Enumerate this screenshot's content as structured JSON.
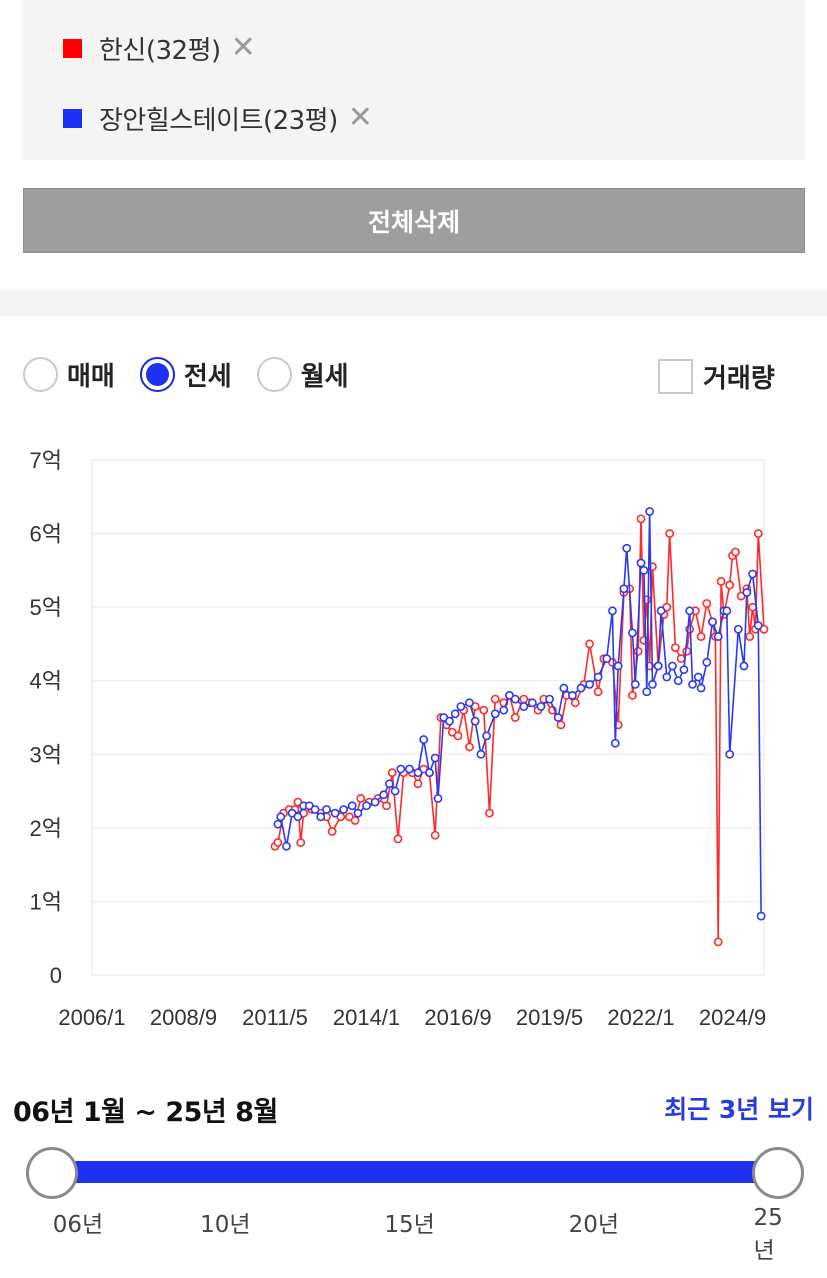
{
  "selected": [
    {
      "name": "한신(32평)",
      "color": "#ff0000",
      "remove_icon": "close-icon"
    },
    {
      "name": "장안힐스테이트(23평)",
      "color": "#1e30f0",
      "remove_icon": "close-icon"
    }
  ],
  "delete_all_label": "전체삭제",
  "trade_types": [
    {
      "label": "매매",
      "checked": false
    },
    {
      "label": "전세",
      "checked": true
    },
    {
      "label": "월세",
      "checked": false
    }
  ],
  "volume_label": "거래량",
  "volume_checked": false,
  "chart_data": {
    "type": "line",
    "ylim": [
      0,
      7
    ],
    "y_ticks": [
      "0",
      "1억",
      "2억",
      "3억",
      "4억",
      "5억",
      "6억",
      "7억"
    ],
    "x_ticks": [
      "2006/1",
      "2008/9",
      "2011/5",
      "2014/1",
      "2016/9",
      "2019/5",
      "2022/1",
      "2024/9"
    ],
    "x_range": [
      "2006-01",
      "2025-08"
    ],
    "grid": true,
    "series": [
      {
        "name": "한신(32평)",
        "color": "#ff2a2a",
        "points": [
          [
            "2011-05",
            1.75
          ],
          [
            "2011-06",
            1.8
          ],
          [
            "2011-08",
            2.2
          ],
          [
            "2011-10",
            2.25
          ],
          [
            "2011-12",
            2.25
          ],
          [
            "2012-01",
            2.35
          ],
          [
            "2012-02",
            1.8
          ],
          [
            "2012-03",
            2.2
          ],
          [
            "2012-06",
            2.25
          ],
          [
            "2012-09",
            2.2
          ],
          [
            "2012-11",
            2.15
          ],
          [
            "2013-01",
            1.95
          ],
          [
            "2013-04",
            2.15
          ],
          [
            "2013-07",
            2.15
          ],
          [
            "2013-09",
            2.1
          ],
          [
            "2013-11",
            2.4
          ],
          [
            "2014-02",
            2.35
          ],
          [
            "2014-05",
            2.4
          ],
          [
            "2014-08",
            2.3
          ],
          [
            "2014-10",
            2.75
          ],
          [
            "2014-12",
            1.85
          ],
          [
            "2015-02",
            2.75
          ],
          [
            "2015-05",
            2.75
          ],
          [
            "2015-07",
            2.6
          ],
          [
            "2015-09",
            2.8
          ],
          [
            "2015-11",
            2.75
          ],
          [
            "2016-01",
            1.9
          ],
          [
            "2016-03",
            3.5
          ],
          [
            "2016-05",
            3.4
          ],
          [
            "2016-07",
            3.3
          ],
          [
            "2016-09",
            3.25
          ],
          [
            "2016-11",
            3.6
          ],
          [
            "2017-01",
            3.1
          ],
          [
            "2017-03",
            3.65
          ],
          [
            "2017-06",
            3.6
          ],
          [
            "2017-08",
            2.2
          ],
          [
            "2017-10",
            3.75
          ],
          [
            "2018-01",
            3.7
          ],
          [
            "2018-03",
            3.8
          ],
          [
            "2018-05",
            3.5
          ],
          [
            "2018-08",
            3.75
          ],
          [
            "2018-10",
            3.7
          ],
          [
            "2019-01",
            3.6
          ],
          [
            "2019-03",
            3.75
          ],
          [
            "2019-06",
            3.6
          ],
          [
            "2019-09",
            3.4
          ],
          [
            "2019-11",
            3.8
          ],
          [
            "2020-02",
            3.7
          ],
          [
            "2020-05",
            3.95
          ],
          [
            "2020-07",
            4.5
          ],
          [
            "2020-10",
            3.85
          ],
          [
            "2020-12",
            4.3
          ],
          [
            "2021-03",
            4.25
          ],
          [
            "2021-05",
            3.4
          ],
          [
            "2021-07",
            5.2
          ],
          [
            "2021-09",
            5.25
          ],
          [
            "2021-10",
            3.8
          ],
          [
            "2021-12",
            4.4
          ],
          [
            "2022-01",
            6.2
          ],
          [
            "2022-02",
            4.55
          ],
          [
            "2022-03",
            5.1
          ],
          [
            "2022-04",
            4.2
          ],
          [
            "2022-05",
            5.55
          ],
          [
            "2022-07",
            4.2
          ],
          [
            "2022-09",
            4.9
          ],
          [
            "2022-10",
            5.0
          ],
          [
            "2022-11",
            6.0
          ],
          [
            "2023-01",
            4.45
          ],
          [
            "2023-03",
            4.3
          ],
          [
            "2023-05",
            4.4
          ],
          [
            "2023-06",
            4.7
          ],
          [
            "2023-08",
            4.95
          ],
          [
            "2023-10",
            4.6
          ],
          [
            "2023-12",
            5.05
          ],
          [
            "2024-02",
            4.8
          ],
          [
            "2024-03",
            4.6
          ],
          [
            "2024-04",
            0.45
          ],
          [
            "2024-05",
            5.35
          ],
          [
            "2024-06",
            4.9
          ],
          [
            "2024-08",
            5.3
          ],
          [
            "2024-09",
            5.7
          ],
          [
            "2024-10",
            5.75
          ],
          [
            "2024-12",
            5.15
          ],
          [
            "2025-02",
            5.25
          ],
          [
            "2025-03",
            4.6
          ],
          [
            "2025-04",
            5.0
          ],
          [
            "2025-05",
            4.7
          ],
          [
            "2025-06",
            6.0
          ],
          [
            "2025-08",
            4.7
          ]
        ]
      },
      {
        "name": "장안힐스테이트(23평)",
        "color": "#2a3af0",
        "points": [
          [
            "2011-06",
            2.05
          ],
          [
            "2011-07",
            2.15
          ],
          [
            "2011-09",
            1.75
          ],
          [
            "2011-11",
            2.2
          ],
          [
            "2012-01",
            2.15
          ],
          [
            "2012-03",
            2.3
          ],
          [
            "2012-05",
            2.3
          ],
          [
            "2012-07",
            2.25
          ],
          [
            "2012-09",
            2.15
          ],
          [
            "2012-11",
            2.25
          ],
          [
            "2013-02",
            2.2
          ],
          [
            "2013-05",
            2.25
          ],
          [
            "2013-08",
            2.3
          ],
          [
            "2013-10",
            2.2
          ],
          [
            "2014-01",
            2.3
          ],
          [
            "2014-04",
            2.35
          ],
          [
            "2014-07",
            2.45
          ],
          [
            "2014-09",
            2.6
          ],
          [
            "2014-11",
            2.5
          ],
          [
            "2015-01",
            2.8
          ],
          [
            "2015-04",
            2.8
          ],
          [
            "2015-07",
            2.75
          ],
          [
            "2015-09",
            3.2
          ],
          [
            "2015-11",
            2.75
          ],
          [
            "2016-01",
            2.95
          ],
          [
            "2016-02",
            2.4
          ],
          [
            "2016-04",
            3.5
          ],
          [
            "2016-06",
            3.45
          ],
          [
            "2016-08",
            3.55
          ],
          [
            "2016-10",
            3.65
          ],
          [
            "2017-01",
            3.7
          ],
          [
            "2017-03",
            3.45
          ],
          [
            "2017-05",
            3.0
          ],
          [
            "2017-07",
            3.25
          ],
          [
            "2017-10",
            3.55
          ],
          [
            "2018-01",
            3.6
          ],
          [
            "2018-03",
            3.8
          ],
          [
            "2018-05",
            3.75
          ],
          [
            "2018-08",
            3.65
          ],
          [
            "2018-11",
            3.7
          ],
          [
            "2019-02",
            3.65
          ],
          [
            "2019-05",
            3.75
          ],
          [
            "2019-08",
            3.5
          ],
          [
            "2019-10",
            3.9
          ],
          [
            "2020-01",
            3.8
          ],
          [
            "2020-04",
            3.9
          ],
          [
            "2020-07",
            3.95
          ],
          [
            "2020-10",
            4.05
          ],
          [
            "2021-01",
            4.3
          ],
          [
            "2021-03",
            4.95
          ],
          [
            "2021-04",
            3.15
          ],
          [
            "2021-05",
            4.2
          ],
          [
            "2021-07",
            5.25
          ],
          [
            "2021-08",
            5.8
          ],
          [
            "2021-10",
            4.65
          ],
          [
            "2021-11",
            3.95
          ],
          [
            "2022-01",
            5.6
          ],
          [
            "2022-02",
            5.5
          ],
          [
            "2022-03",
            3.85
          ],
          [
            "2022-04",
            6.3
          ],
          [
            "2022-05",
            3.95
          ],
          [
            "2022-07",
            4.2
          ],
          [
            "2022-08",
            4.95
          ],
          [
            "2022-10",
            4.05
          ],
          [
            "2022-12",
            4.2
          ],
          [
            "2023-02",
            4.0
          ],
          [
            "2023-04",
            4.15
          ],
          [
            "2023-06",
            4.95
          ],
          [
            "2023-07",
            3.95
          ],
          [
            "2023-09",
            4.05
          ],
          [
            "2023-10",
            3.9
          ],
          [
            "2023-12",
            4.25
          ],
          [
            "2024-02",
            4.8
          ],
          [
            "2024-04",
            4.6
          ],
          [
            "2024-06",
            4.95
          ],
          [
            "2024-07",
            4.95
          ],
          [
            "2024-08",
            3.0
          ],
          [
            "2024-11",
            4.7
          ],
          [
            "2025-01",
            4.2
          ],
          [
            "2025-02",
            5.2
          ],
          [
            "2025-04",
            5.45
          ],
          [
            "2025-06",
            4.75
          ],
          [
            "2025-07",
            0.8
          ]
        ]
      }
    ]
  },
  "range_label": "06년 1월 ~ 25년 8월",
  "recent_label": "최근 3년 보기",
  "slider_ticks": [
    {
      "label": "06년",
      "year": 2006
    },
    {
      "label": "10년",
      "year": 2010
    },
    {
      "label": "15년",
      "year": 2015
    },
    {
      "label": "20년",
      "year": 2020
    },
    {
      "label": "25년",
      "year": 2025
    }
  ],
  "slider_range": [
    2006,
    2025
  ],
  "slider_value": [
    2006,
    2025
  ]
}
